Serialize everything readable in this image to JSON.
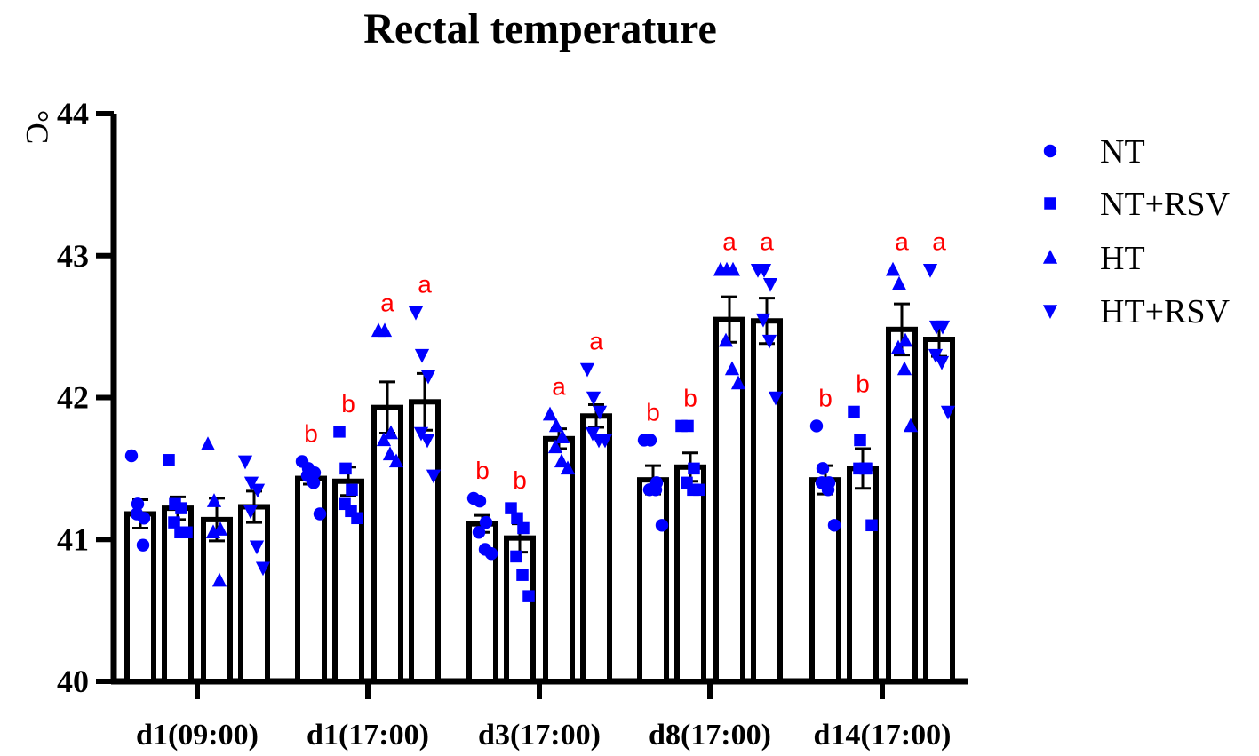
{
  "chart_data": {
    "type": "bar",
    "title": "Rectal temperature",
    "ylabel": "°C",
    "xlabel": "",
    "ylim": [
      40,
      44
    ],
    "yticks": [
      "40",
      "41",
      "42",
      "43",
      "44"
    ],
    "categories": [
      "d1(09:00)",
      "d1(17:00)",
      "d3(17:00)",
      "d8(17:00)",
      "d14(17:00)"
    ],
    "legend_position": "top-right",
    "marker_color": "#0000ff",
    "letter_color": "#ff0000",
    "series": [
      {
        "name": "NT",
        "marker": "circle",
        "values": [
          41.18,
          41.43,
          41.11,
          41.42,
          41.42
        ],
        "sem": [
          0.1,
          0.04,
          0.06,
          0.1,
          0.1
        ],
        "letters": [
          "",
          "b",
          "b",
          "b",
          "b"
        ],
        "points": [
          [
            41.59,
            41.25,
            41.15,
            41.18,
            40.96
          ],
          [
            41.55,
            41.5,
            41.47,
            41.45,
            41.4,
            41.18
          ],
          [
            41.29,
            41.27,
            41.12,
            41.05,
            40.93,
            40.9
          ],
          [
            41.7,
            41.7,
            41.4,
            41.35,
            41.35,
            41.1
          ],
          [
            41.8,
            41.5,
            41.4,
            41.4,
            41.35,
            41.1
          ]
        ]
      },
      {
        "name": "NT+RSV",
        "marker": "square",
        "values": [
          41.22,
          41.41,
          41.01,
          41.51,
          41.5
        ],
        "sem": [
          0.08,
          0.1,
          0.1,
          0.1,
          0.14
        ],
        "letters": [
          "",
          "b",
          "b",
          "b",
          "b"
        ],
        "points": [
          [
            41.56,
            41.25,
            41.22,
            41.12,
            41.05,
            41.05
          ],
          [
            41.76,
            41.5,
            41.35,
            41.25,
            41.2,
            41.15
          ],
          [
            41.22,
            41.15,
            41.08,
            40.88,
            40.75,
            40.6
          ],
          [
            41.8,
            41.8,
            41.5,
            41.4,
            41.35,
            41.35
          ],
          [
            41.9,
            41.7,
            41.5,
            41.5,
            41.5,
            41.1
          ]
        ]
      },
      {
        "name": "HT",
        "marker": "triangle-up",
        "values": [
          41.14,
          41.93,
          41.71,
          42.55,
          42.48
        ],
        "sem": [
          0.15,
          0.18,
          0.07,
          0.16,
          0.18
        ],
        "letters": [
          "",
          "a",
          "a",
          "a",
          "a"
        ],
        "points": [
          [
            41.67,
            41.27,
            41.07,
            41.05,
            40.71
          ],
          [
            42.47,
            42.47,
            41.75,
            41.7,
            41.6,
            41.55
          ],
          [
            41.88,
            41.8,
            41.72,
            41.65,
            41.55,
            41.5
          ],
          [
            42.9,
            42.9,
            42.9,
            42.4,
            42.2,
            42.1
          ],
          [
            42.9,
            42.8,
            42.4,
            42.35,
            42.2,
            41.8
          ]
        ]
      },
      {
        "name": "HT+RSV",
        "marker": "triangle-down",
        "values": [
          41.23,
          41.97,
          41.87,
          42.54,
          42.41
        ],
        "sem": [
          0.11,
          0.2,
          0.08,
          0.16,
          0.12
        ],
        "letters": [
          "",
          "a",
          "a",
          "a",
          "a"
        ],
        "points": [
          [
            41.55,
            41.4,
            41.35,
            41.2,
            40.95,
            40.8
          ],
          [
            42.6,
            42.3,
            42.15,
            41.75,
            41.7,
            41.45
          ],
          [
            42.2,
            42.0,
            41.9,
            41.75,
            41.7,
            41.7
          ],
          [
            42.9,
            42.9,
            42.8,
            42.55,
            42.4,
            42.0
          ],
          [
            42.9,
            42.5,
            42.5,
            42.3,
            42.25,
            41.9
          ]
        ]
      }
    ]
  }
}
